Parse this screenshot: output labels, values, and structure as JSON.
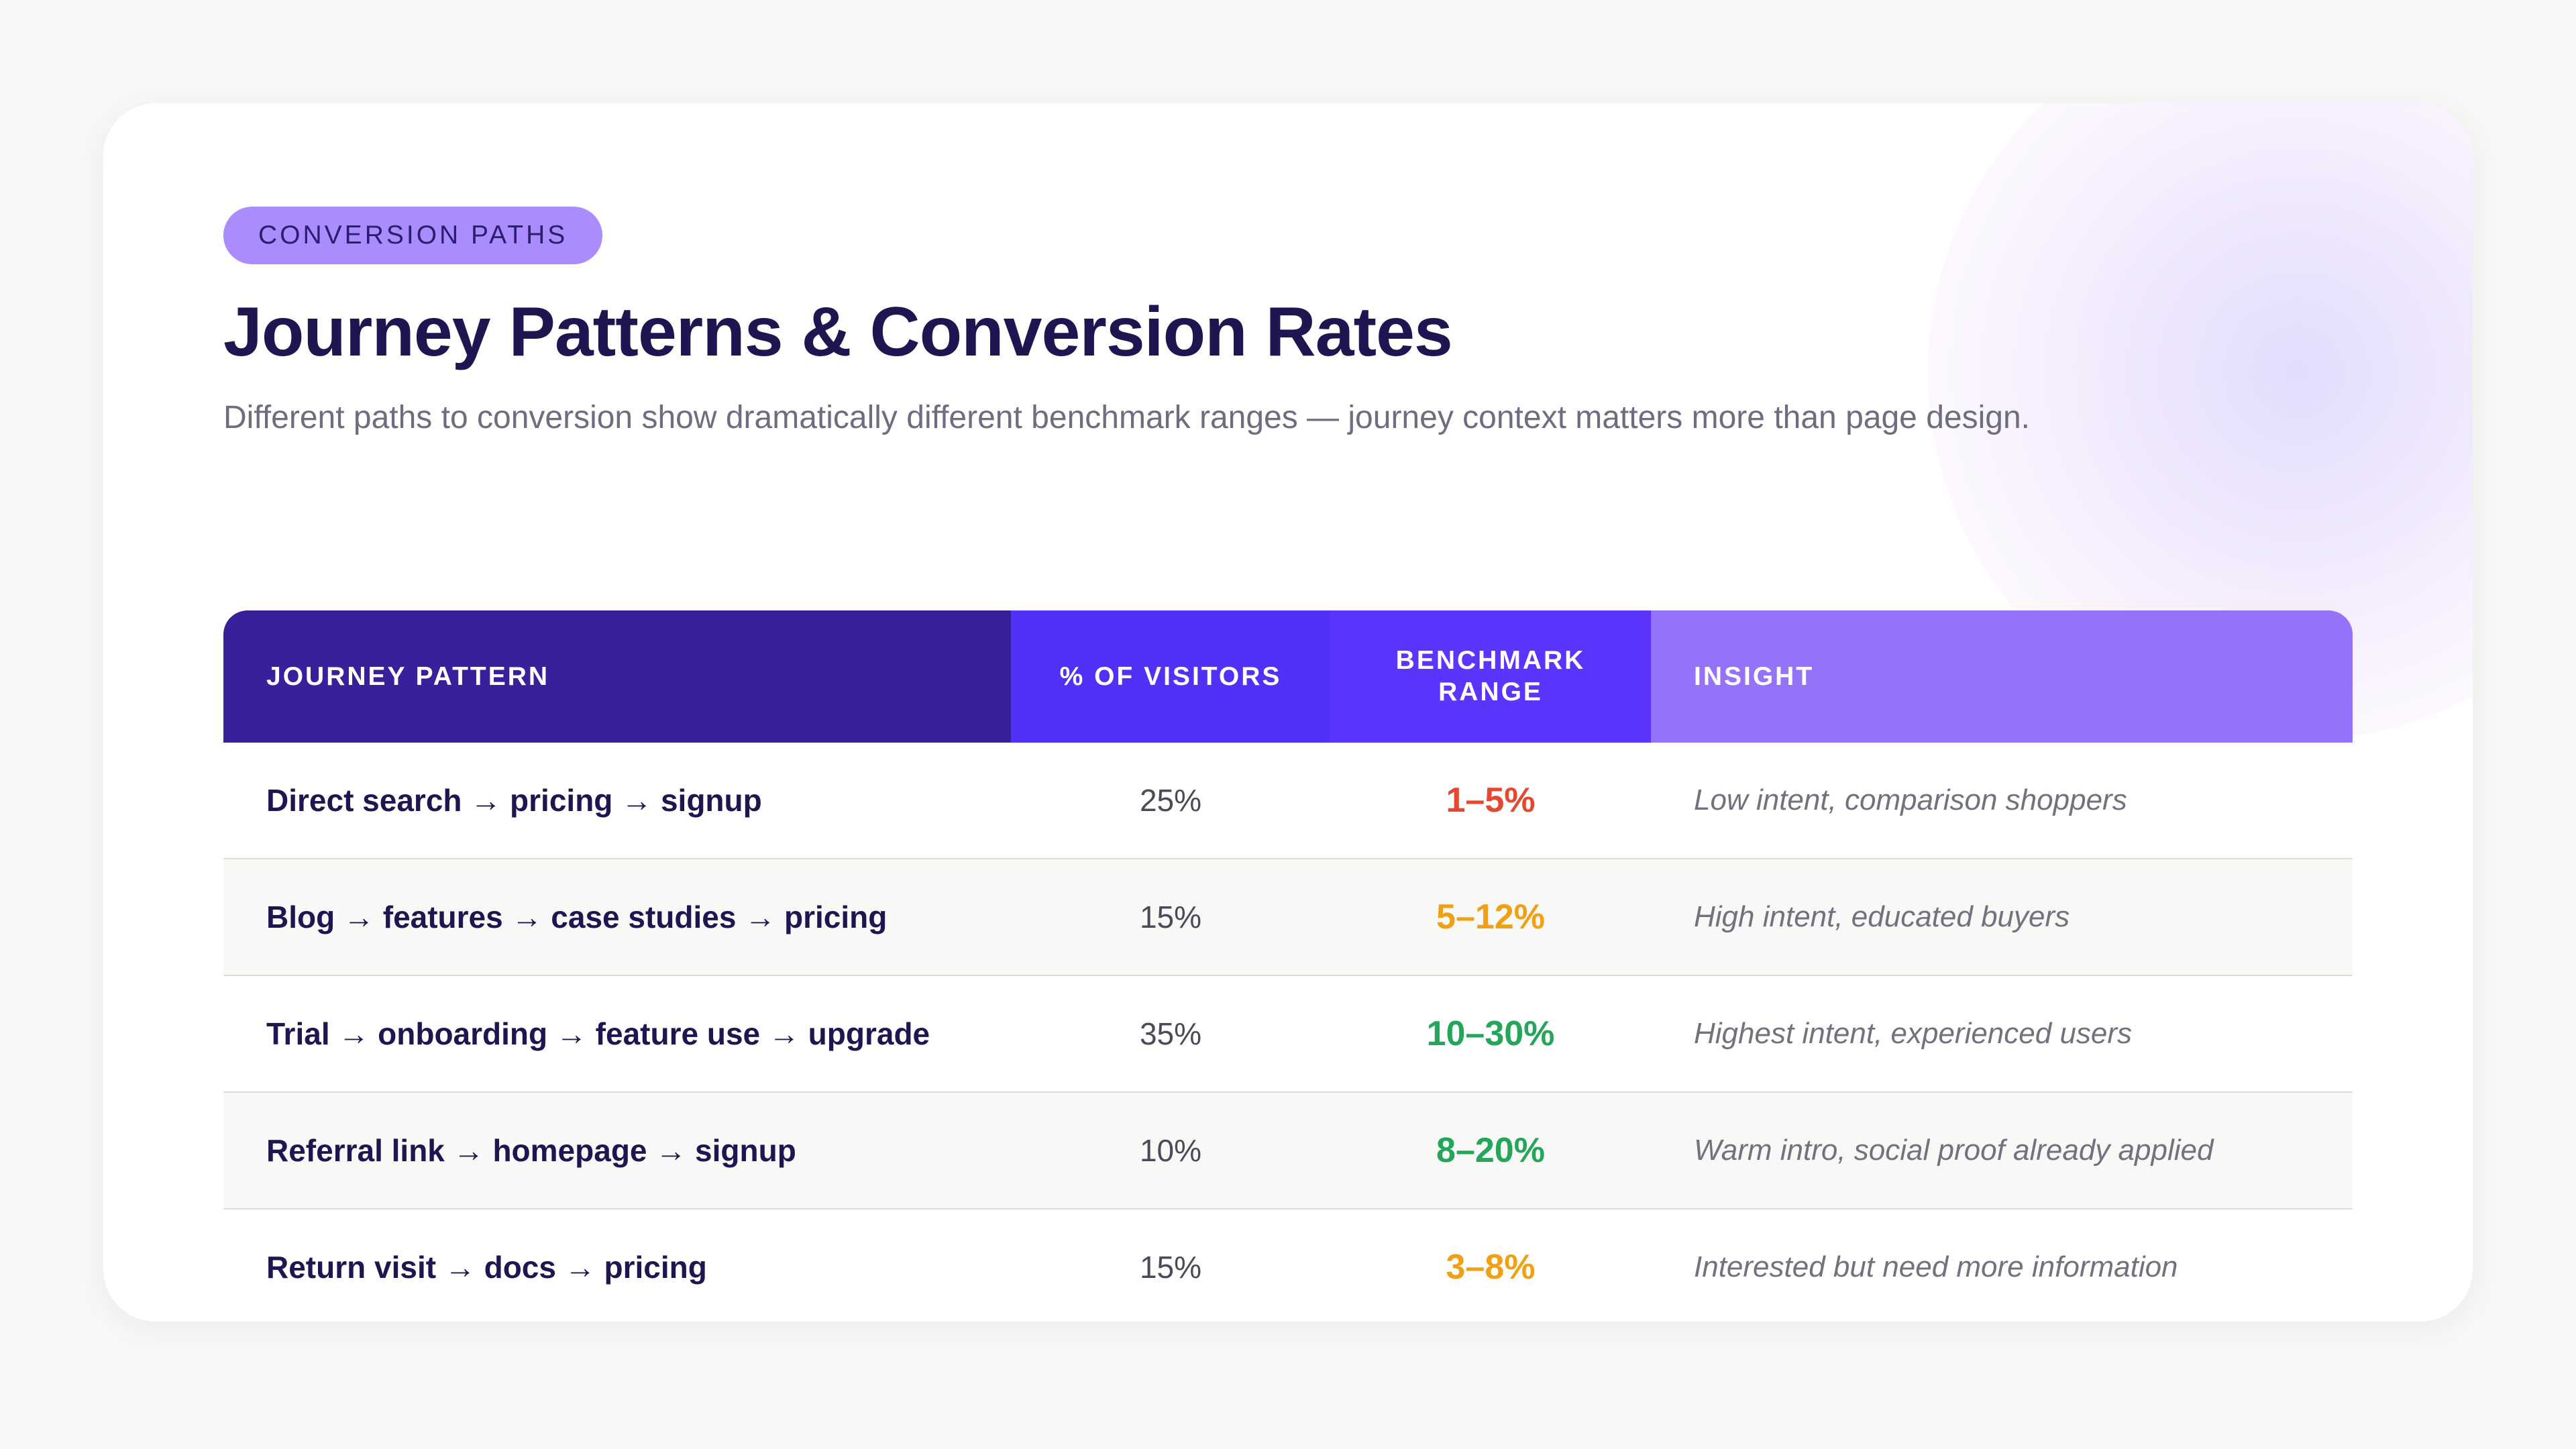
{
  "tag": "CONVERSION PATHS",
  "title": "Journey Patterns & Conversion Rates",
  "subtitle": "Different paths to conversion show dramatically different benchmark ranges — journey context matters more than page design.",
  "table": {
    "headers": {
      "journey": "JOURNEY PATTERN",
      "visitors": "% OF VISITORS",
      "range": "BENCHMARK RANGE",
      "insight": "INSIGHT"
    },
    "rows": [
      {
        "journey": "Direct search → pricing → signup",
        "visitors": "25%",
        "range": "1–5%",
        "range_color": "#e5482e",
        "insight": "Low intent, comparison shoppers"
      },
      {
        "journey": "Blog → features → case studies → pricing",
        "visitors": "15%",
        "range": "5–12%",
        "range_color": "#f0a012",
        "insight": "High intent, educated buyers"
      },
      {
        "journey": "Trial → onboarding → feature use → upgrade",
        "visitors": "35%",
        "range": "10–30%",
        "range_color": "#23a55a",
        "insight": "Highest intent, experienced users"
      },
      {
        "journey": "Referral link → homepage → signup",
        "visitors": "10%",
        "range": "8–20%",
        "range_color": "#23a55a",
        "insight": "Warm intro, social proof already applied"
      },
      {
        "journey": "Return visit → docs → pricing",
        "visitors": "15%",
        "range": "3–8%",
        "range_color": "#f0a012",
        "insight": "Interested but need more information"
      }
    ]
  },
  "colors": {
    "title": "#1e1650",
    "tag_bg": "#ab8cff",
    "header_journey": "#37209a",
    "header_visitors": "#5032f6",
    "header_range": "#5b34fd",
    "header_insight": "#9472fa"
  }
}
